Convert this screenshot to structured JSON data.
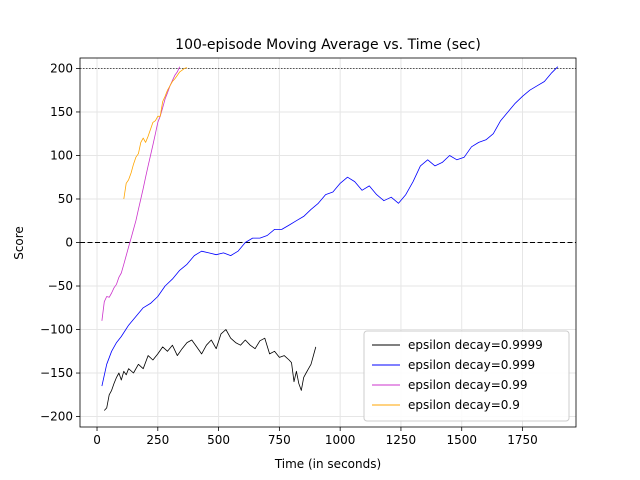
{
  "chart_data": {
    "type": "line",
    "title": "100-episode Moving Average vs. Time (sec)",
    "xlabel": "Time (in seconds)",
    "ylabel": "Score",
    "xlim": [
      -70,
      1970
    ],
    "ylim": [
      -212,
      212
    ],
    "xticks": [
      0,
      250,
      500,
      750,
      1000,
      1250,
      1500,
      1750
    ],
    "yticks": [
      -200,
      -150,
      -100,
      -50,
      0,
      50,
      100,
      150,
      200
    ],
    "grid": true,
    "legend_position": "lower-right",
    "reference_lines": [
      {
        "y": 200,
        "style": "dotted",
        "color": "#000000"
      },
      {
        "y": 0,
        "style": "dashed",
        "color": "#000000"
      }
    ],
    "series": [
      {
        "name": "epsilon decay=0.9999",
        "color": "#000000",
        "x": [
          30,
          40,
          50,
          60,
          70,
          80,
          90,
          100,
          110,
          120,
          130,
          150,
          170,
          190,
          210,
          230,
          250,
          270,
          290,
          310,
          330,
          350,
          370,
          390,
          410,
          430,
          450,
          470,
          490,
          510,
          530,
          550,
          570,
          590,
          610,
          630,
          650,
          670,
          690,
          710,
          730,
          750,
          770,
          790,
          800,
          810,
          820,
          830,
          840,
          850,
          860,
          870,
          880,
          890,
          900
        ],
        "y": [
          -193,
          -190,
          -175,
          -170,
          -162,
          -155,
          -150,
          -158,
          -148,
          -152,
          -145,
          -150,
          -140,
          -145,
          -130,
          -135,
          -128,
          -120,
          -125,
          -118,
          -130,
          -122,
          -115,
          -112,
          -120,
          -128,
          -118,
          -112,
          -122,
          -105,
          -100,
          -110,
          -115,
          -118,
          -112,
          -118,
          -122,
          -113,
          -110,
          -128,
          -125,
          -132,
          -130,
          -135,
          -138,
          -160,
          -148,
          -162,
          -170,
          -155,
          -150,
          -145,
          -140,
          -130,
          -120
        ]
      },
      {
        "name": "epsilon decay=0.999",
        "color": "#0000ff",
        "x": [
          20,
          40,
          60,
          80,
          100,
          130,
          160,
          190,
          220,
          250,
          280,
          310,
          340,
          370,
          400,
          430,
          460,
          490,
          520,
          550,
          580,
          610,
          640,
          670,
          700,
          730,
          760,
          790,
          820,
          850,
          880,
          910,
          940,
          970,
          1000,
          1030,
          1060,
          1090,
          1120,
          1150,
          1180,
          1210,
          1240,
          1270,
          1300,
          1330,
          1360,
          1390,
          1420,
          1450,
          1480,
          1510,
          1540,
          1570,
          1600,
          1630,
          1660,
          1690,
          1720,
          1750,
          1780,
          1810,
          1840,
          1870,
          1895
        ],
        "y": [
          -165,
          -140,
          -125,
          -115,
          -108,
          -95,
          -85,
          -75,
          -70,
          -62,
          -50,
          -42,
          -32,
          -25,
          -15,
          -10,
          -12,
          -14,
          -12,
          -15,
          -10,
          0,
          5,
          5,
          8,
          15,
          15,
          20,
          25,
          30,
          38,
          45,
          55,
          58,
          68,
          75,
          70,
          60,
          65,
          55,
          48,
          52,
          45,
          55,
          70,
          88,
          95,
          88,
          92,
          100,
          95,
          98,
          110,
          115,
          118,
          125,
          140,
          150,
          160,
          168,
          175,
          180,
          185,
          195,
          202
        ]
      },
      {
        "name": "epsilon decay=0.99",
        "color": "#cc33cc",
        "x": [
          20,
          30,
          40,
          50,
          60,
          70,
          80,
          90,
          100,
          110,
          120,
          130,
          140,
          150,
          160,
          170,
          180,
          190,
          200,
          210,
          220,
          230,
          240,
          250,
          260,
          270,
          280,
          290,
          300,
          310,
          320,
          330,
          340
        ],
        "y": [
          -90,
          -68,
          -62,
          -63,
          -58,
          -52,
          -48,
          -40,
          -35,
          -25,
          -15,
          -5,
          5,
          15,
          25,
          38,
          50,
          62,
          75,
          88,
          100,
          112,
          125,
          138,
          145,
          155,
          165,
          172,
          180,
          186,
          192,
          196,
          202
        ]
      },
      {
        "name": "epsilon decay=0.9",
        "color": "#ffa500",
        "x": [
          110,
          120,
          130,
          140,
          150,
          160,
          170,
          180,
          190,
          200,
          210,
          220,
          230,
          240,
          250,
          260,
          270,
          280,
          290,
          300,
          310,
          320,
          330,
          340,
          350,
          360,
          370
        ],
        "y": [
          50,
          68,
          72,
          80,
          90,
          98,
          102,
          115,
          120,
          115,
          122,
          130,
          138,
          140,
          145,
          145,
          162,
          168,
          175,
          180,
          185,
          188,
          192,
          196,
          198,
          200,
          201
        ]
      }
    ]
  }
}
